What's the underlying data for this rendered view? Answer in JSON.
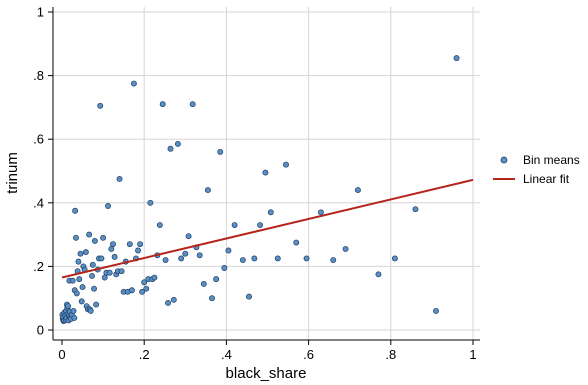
{
  "chart_data": {
    "type": "scatter",
    "title": "",
    "xlabel": "black_share",
    "ylabel": "trinum",
    "xlim": [
      0,
      1
    ],
    "ylim": [
      0,
      1
    ],
    "grid": true,
    "legend_position": "right",
    "x_ticks": [
      {
        "value": 0,
        "label": "0"
      },
      {
        "value": 0.2,
        "label": ".2"
      },
      {
        "value": 0.4,
        "label": ".4"
      },
      {
        "value": 0.6,
        "label": ".6"
      },
      {
        "value": 0.8,
        "label": ".8"
      },
      {
        "value": 1,
        "label": "1"
      }
    ],
    "y_ticks": [
      {
        "value": 0,
        "label": "0"
      },
      {
        "value": 0.2,
        "label": ".2"
      },
      {
        "value": 0.4,
        "label": ".4"
      },
      {
        "value": 0.6,
        "label": ".6"
      },
      {
        "value": 0.8,
        "label": ".8"
      },
      {
        "value": 1,
        "label": "1"
      }
    ],
    "series": [
      {
        "name": "Bin means",
        "kind": "scatter",
        "color": "#5b8fc4",
        "edge_color": "#1c3f66",
        "points": [
          [
            0.001,
            0.048
          ],
          [
            0.002,
            0.035
          ],
          [
            0.003,
            0.04
          ],
          [
            0.004,
            0.028
          ],
          [
            0.005,
            0.03
          ],
          [
            0.006,
            0.055
          ],
          [
            0.008,
            0.045
          ],
          [
            0.009,
            0.032
          ],
          [
            0.01,
            0.06
          ],
          [
            0.011,
            0.038
          ],
          [
            0.012,
            0.08
          ],
          [
            0.013,
            0.07
          ],
          [
            0.014,
            0.05
          ],
          [
            0.015,
            0.075
          ],
          [
            0.016,
            0.03
          ],
          [
            0.017,
            0.045
          ],
          [
            0.018,
            0.155
          ],
          [
            0.019,
            0.058
          ],
          [
            0.02,
            0.04
          ],
          [
            0.022,
            0.035
          ],
          [
            0.024,
            0.048
          ],
          [
            0.026,
            0.155
          ],
          [
            0.028,
            0.06
          ],
          [
            0.03,
            0.038
          ],
          [
            0.031,
            0.125
          ],
          [
            0.032,
            0.375
          ],
          [
            0.034,
            0.29
          ],
          [
            0.036,
            0.115
          ],
          [
            0.038,
            0.185
          ],
          [
            0.04,
            0.215
          ],
          [
            0.042,
            0.16
          ],
          [
            0.045,
            0.24
          ],
          [
            0.048,
            0.09
          ],
          [
            0.05,
            0.135
          ],
          [
            0.052,
            0.2
          ],
          [
            0.055,
            0.19
          ],
          [
            0.058,
            0.245
          ],
          [
            0.06,
            0.075
          ],
          [
            0.063,
            0.065
          ],
          [
            0.066,
            0.3
          ],
          [
            0.068,
            0.065
          ],
          [
            0.07,
            0.06
          ],
          [
            0.073,
            0.17
          ],
          [
            0.075,
            0.205
          ],
          [
            0.078,
            0.13
          ],
          [
            0.08,
            0.28
          ],
          [
            0.083,
            0.08
          ],
          [
            0.087,
            0.19
          ],
          [
            0.09,
            0.225
          ],
          [
            0.093,
            0.705
          ],
          [
            0.096,
            0.225
          ],
          [
            0.1,
            0.29
          ],
          [
            0.104,
            0.165
          ],
          [
            0.108,
            0.18
          ],
          [
            0.112,
            0.39
          ],
          [
            0.116,
            0.18
          ],
          [
            0.12,
            0.255
          ],
          [
            0.124,
            0.27
          ],
          [
            0.128,
            0.23
          ],
          [
            0.132,
            0.175
          ],
          [
            0.136,
            0.185
          ],
          [
            0.14,
            0.475
          ],
          [
            0.145,
            0.185
          ],
          [
            0.15,
            0.12
          ],
          [
            0.155,
            0.215
          ],
          [
            0.16,
            0.12
          ],
          [
            0.165,
            0.27
          ],
          [
            0.17,
            0.125
          ],
          [
            0.175,
            0.775
          ],
          [
            0.18,
            0.225
          ],
          [
            0.185,
            0.25
          ],
          [
            0.19,
            0.27
          ],
          [
            0.195,
            0.12
          ],
          [
            0.2,
            0.15
          ],
          [
            0.205,
            0.13
          ],
          [
            0.21,
            0.16
          ],
          [
            0.215,
            0.4
          ],
          [
            0.22,
            0.16
          ],
          [
            0.225,
            0.165
          ],
          [
            0.232,
            0.235
          ],
          [
            0.238,
            0.33
          ],
          [
            0.245,
            0.71
          ],
          [
            0.252,
            0.22
          ],
          [
            0.258,
            0.085
          ],
          [
            0.264,
            0.57
          ],
          [
            0.272,
            0.095
          ],
          [
            0.282,
            0.585
          ],
          [
            0.29,
            0.225
          ],
          [
            0.3,
            0.24
          ],
          [
            0.308,
            0.295
          ],
          [
            0.318,
            0.71
          ],
          [
            0.327,
            0.26
          ],
          [
            0.335,
            0.235
          ],
          [
            0.345,
            0.145
          ],
          [
            0.355,
            0.44
          ],
          [
            0.365,
            0.1
          ],
          [
            0.375,
            0.16
          ],
          [
            0.385,
            0.56
          ],
          [
            0.395,
            0.195
          ],
          [
            0.405,
            0.25
          ],
          [
            0.42,
            0.33
          ],
          [
            0.44,
            0.22
          ],
          [
            0.455,
            0.105
          ],
          [
            0.468,
            0.225
          ],
          [
            0.482,
            0.33
          ],
          [
            0.495,
            0.495
          ],
          [
            0.508,
            0.37
          ],
          [
            0.525,
            0.225
          ],
          [
            0.545,
            0.52
          ],
          [
            0.57,
            0.275
          ],
          [
            0.595,
            0.225
          ],
          [
            0.63,
            0.37
          ],
          [
            0.66,
            0.22
          ],
          [
            0.69,
            0.255
          ],
          [
            0.72,
            0.44
          ],
          [
            0.77,
            0.175
          ],
          [
            0.81,
            0.225
          ],
          [
            0.86,
            0.38
          ],
          [
            0.91,
            0.06
          ],
          [
            0.96,
            0.855
          ]
        ]
      },
      {
        "name": "Linear fit",
        "kind": "line",
        "color": "#b5251c",
        "x": [
          0,
          1
        ],
        "y": [
          0.165,
          0.472
        ]
      }
    ]
  }
}
